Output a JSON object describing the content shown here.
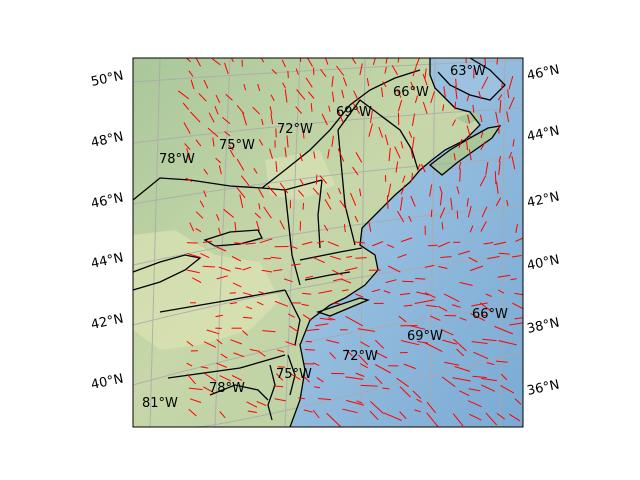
{
  "map": {
    "left_lat_labels": [
      "50°N",
      "48°N",
      "46°N",
      "44°N",
      "42°N",
      "40°N"
    ],
    "right_lat_labels": [
      "46°N",
      "44°N",
      "42°N",
      "40°N",
      "38°N",
      "36°N"
    ],
    "lon_labels": [
      "63°W",
      "66°W",
      "69°W",
      "72°W",
      "75°W",
      "78°W",
      "66°W",
      "69°W",
      "72°W",
      "75°W",
      "78°W",
      "81°W"
    ],
    "colors": {
      "land_dark": "#9fbf94",
      "land_light": "#dfe6b8",
      "ocean": "#8fb8d8",
      "ocean_deep": "#7aa8d0",
      "borders": "#000000",
      "wind_vectors": "#ff0000",
      "graticule": "#aaaaaa"
    }
  }
}
